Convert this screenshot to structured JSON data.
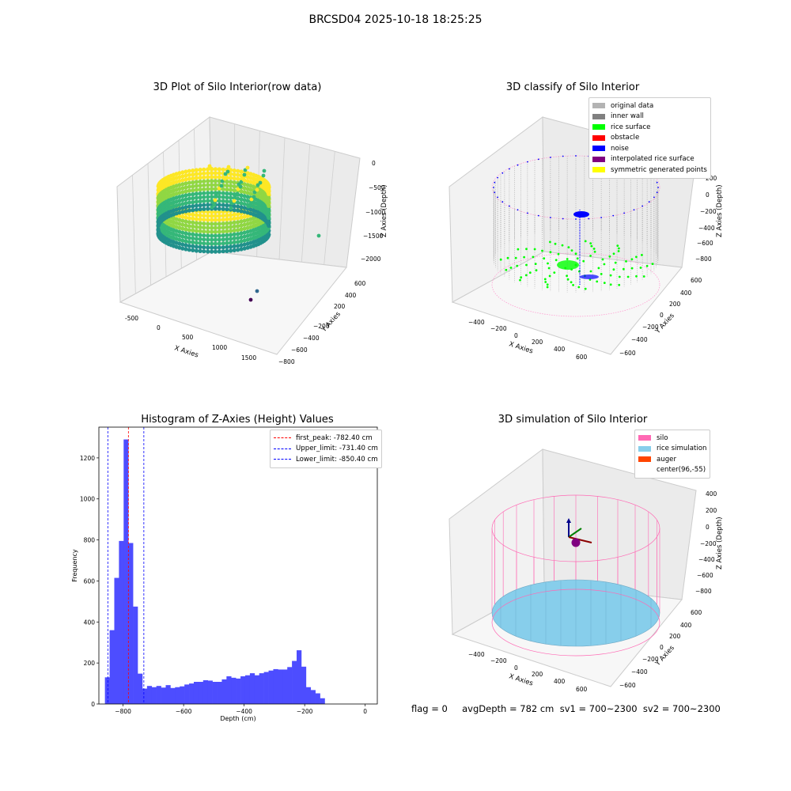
{
  "suptitle": "BRCSD04 2025-10-18 18:25:25",
  "status_text": "flag = 0     avgDepth = 782 cm  sv1 = 700~2300  sv2 = 700~2300",
  "chart_data": [
    {
      "type": "scatter",
      "projection": "3d",
      "title": "3D Plot of Silo Interior(row data)",
      "xlabel": "X Axies",
      "ylabel": "Y Axies",
      "zlabel": "Z Axies (Depth)",
      "x_ticks": [
        "-500",
        "0",
        "500",
        "1000",
        "1500"
      ],
      "y_ticks": [
        "600",
        "400",
        "200",
        "−200",
        "−400",
        "−600",
        "−800"
      ],
      "z_ticks": [
        "0",
        "−500",
        "−1000",
        "−1500",
        "−2000"
      ],
      "colormap": "viridis",
      "grid": true,
      "outliers": [
        {
          "x": 1500,
          "y": -200,
          "z": -1500
        },
        {
          "x": 1000,
          "y": -700,
          "z": -2000
        },
        {
          "x": 900,
          "y": -750,
          "z": -2050
        }
      ]
    },
    {
      "type": "scatter",
      "projection": "3d",
      "title": "3D classify of Silo Interior",
      "xlabel": "X Axies",
      "ylabel": "Y Axies",
      "zlabel": "Z Axies (Depth)",
      "x_ticks": [
        "−400",
        "−200",
        "0",
        "200",
        "400",
        "600"
      ],
      "y_ticks": [
        "600",
        "400",
        "200",
        "0",
        "−200",
        "−400",
        "−600"
      ],
      "z_ticks": [
        "200",
        "0",
        "−200",
        "−400",
        "−600",
        "−800"
      ],
      "legend_position": "top-right",
      "legend": [
        {
          "label": "original data",
          "color": "#b3b3b3"
        },
        {
          "label": "inner wall",
          "color": "#808080"
        },
        {
          "label": "rice surface",
          "color": "#00ff00"
        },
        {
          "label": "obstacle",
          "color": "#ff0000"
        },
        {
          "label": "noise",
          "color": "#0000ff"
        },
        {
          "label": "interpolated rice surface",
          "color": "#800080"
        },
        {
          "label": "symmetric generated points",
          "color": "#ffff00"
        }
      ],
      "grid": true
    },
    {
      "type": "bar",
      "title": "Histogram of Z-Axies (Height) Values",
      "xlabel": "Depth (cm)",
      "ylabel": "Frequency",
      "bar_color": "#4d4dff",
      "bin_width": 15.45,
      "x_start": -860,
      "xlim": [
        -880,
        40
      ],
      "ylim": [
        0,
        1350
      ],
      "x_ticks": [
        -800,
        -600,
        -400,
        -200,
        0
      ],
      "y_ticks": [
        0,
        200,
        400,
        600,
        800,
        1000,
        1200
      ],
      "values": [
        130,
        360,
        615,
        795,
        1290,
        785,
        475,
        148,
        75,
        88,
        82,
        88,
        80,
        92,
        78,
        82,
        86,
        95,
        100,
        108,
        108,
        116,
        114,
        108,
        108,
        120,
        135,
        128,
        124,
        135,
        140,
        150,
        140,
        150,
        156,
        163,
        170,
        168,
        168,
        180,
        210,
        262,
        182,
        82,
        68,
        52,
        28
      ],
      "vlines": [
        {
          "label": "first_peak: -782.40 cm",
          "x": -782.4,
          "color": "#ff0000"
        },
        {
          "label": "Upper_limit: -731.40 cm",
          "x": -731.4,
          "color": "#0000ff"
        },
        {
          "label": "Lower_limit: -850.40 cm",
          "x": -850.4,
          "color": "#0000ff"
        }
      ],
      "legend_position": "top-right"
    },
    {
      "type": "scatter",
      "projection": "3d",
      "title": "3D simulation of Silo Interior",
      "xlabel": "X Axies",
      "ylabel": "Y Axies",
      "zlabel": "Z Axies (Depth)",
      "x_ticks": [
        "−400",
        "−200",
        "0",
        "200",
        "400",
        "600"
      ],
      "y_ticks": [
        "600",
        "400",
        "200",
        "0",
        "−200",
        "−400",
        "−600"
      ],
      "z_ticks": [
        "400",
        "200",
        "0",
        "−200",
        "−400",
        "−600",
        "−800"
      ],
      "legend_position": "top-right",
      "legend": [
        {
          "label": "silo",
          "color": "#ff69b4"
        },
        {
          "label": "rice simulation",
          "color": "#87ceeb"
        },
        {
          "label": "auger",
          "color": "#ff4500"
        },
        {
          "label": "center(96,-55)",
          "color": "#ffffff"
        }
      ],
      "center": {
        "x": 96,
        "y": -55
      },
      "grid": true
    }
  ]
}
